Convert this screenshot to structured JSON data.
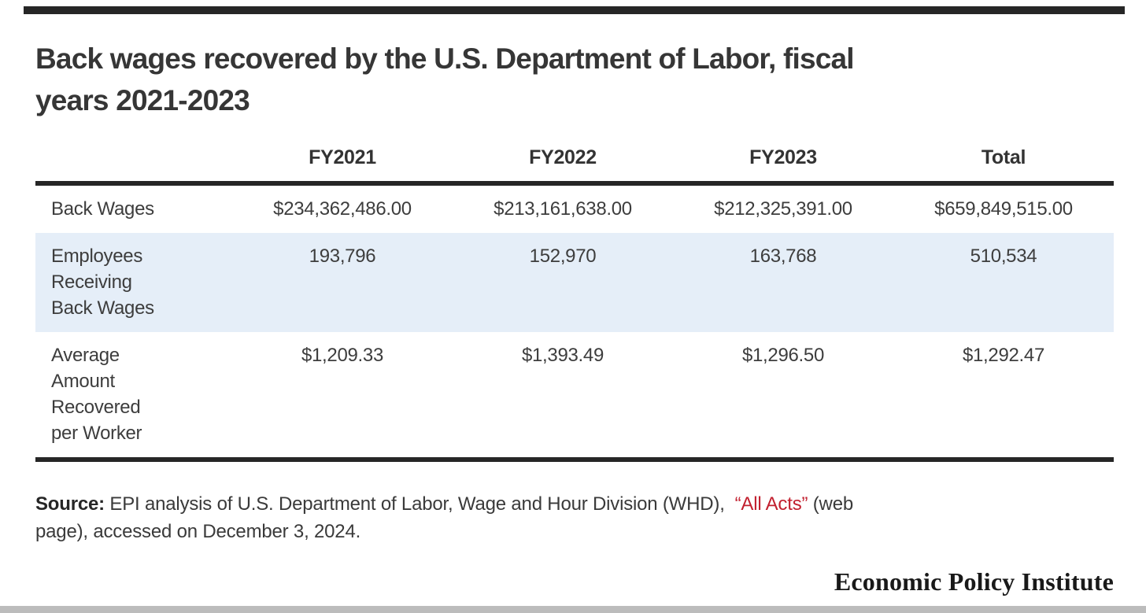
{
  "chart_data": {
    "type": "table",
    "title": "Back wages recovered by the U.S. Department of Labor, fiscal years 2021-2023",
    "columns": [
      "FY2021",
      "FY2022",
      "FY2023",
      "Total"
    ],
    "rows": [
      {
        "label": "Back Wages",
        "values": [
          "$234,362,486.00",
          "$213,161,638.00",
          "$212,325,391.00",
          "$659,849,515.00"
        ]
      },
      {
        "label": "Employees Receiving Back Wages",
        "values": [
          "193,796",
          "152,970",
          "163,768",
          "510,534"
        ]
      },
      {
        "label": "Average Amount Recovered per Worker",
        "values": [
          "$1,209.33",
          "$1,393.49",
          "$1,296.50",
          "$1,292.47"
        ]
      }
    ],
    "source": "Source: EPI analysis of U.S. Department of Labor, Wage and Hour Division (WHD), “All Acts” (web page), accessed on December 3, 2024.",
    "layout_hints": "row 2 highlighted light blue; thick dark rules under header and below last row"
  },
  "title_display": {
    "line1": "Back wages recovered by the U.S. Department of Labor, fiscal",
    "line2": "years 2021-2023"
  },
  "table_display": {
    "corner_header": "",
    "row_label_lines": {
      "r0": [
        "Back Wages"
      ],
      "r1": [
        "Employees",
        "Receiving",
        "Back Wages"
      ],
      "r2": [
        "Average",
        "Amount",
        "Recovered",
        "per Worker"
      ]
    }
  },
  "source_display": {
    "label": "Source:",
    "before_link": " EPI analysis of U.S. Department of Labor, Wage and Hour Division (WHD),  ",
    "link_text": "“All Acts”",
    "after_link_line1": " (web",
    "line2": "page), accessed on December 3, 2024."
  },
  "footer": {
    "brand": "Economic Policy Institute"
  },
  "colors": {
    "rule_dark": "#262626",
    "highlight_row": "#e5eef8",
    "link_red": "#c2202f",
    "bottom_bar_gray": "#bcbcbc",
    "title_text": "#363636"
  }
}
